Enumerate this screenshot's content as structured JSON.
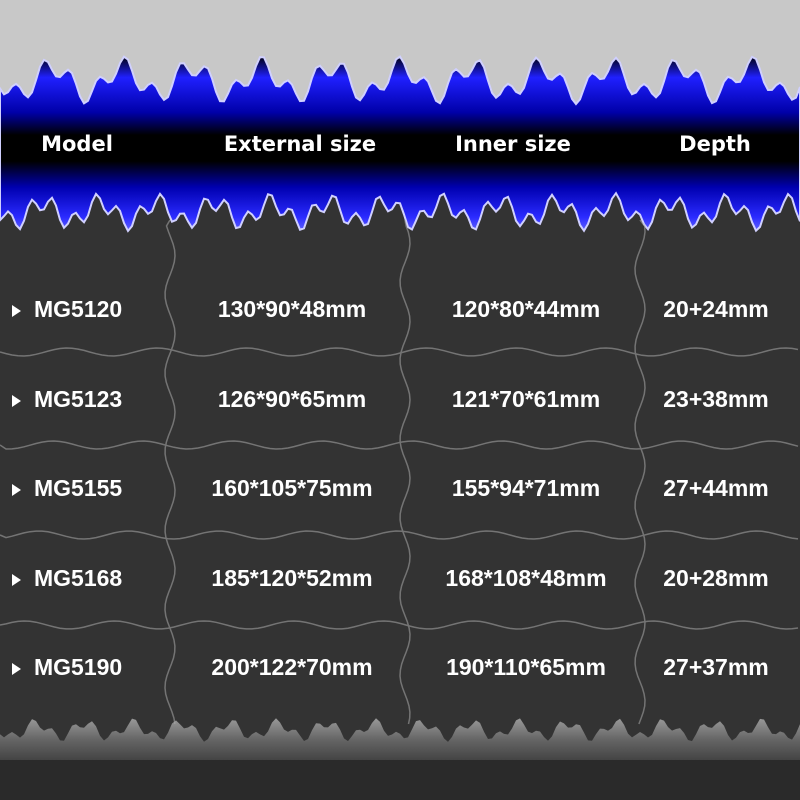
{
  "table": {
    "headers": [
      "Model",
      "External size",
      "Inner size",
      "Depth"
    ],
    "rows": [
      [
        "MG5120",
        "130*90*48mm",
        "120*80*44mm",
        "20+24mm"
      ],
      [
        "MG5123",
        "126*90*65mm",
        "121*70*61mm",
        "23+38mm"
      ],
      [
        "MG5155",
        "160*105*75mm",
        "155*94*71mm",
        "27+44mm"
      ],
      [
        "MG5168",
        "185*120*52mm",
        "168*108*48mm",
        "20+28mm"
      ],
      [
        "MG5190",
        "200*122*70mm",
        "190*110*65mm",
        "27+37mm"
      ]
    ]
  }
}
